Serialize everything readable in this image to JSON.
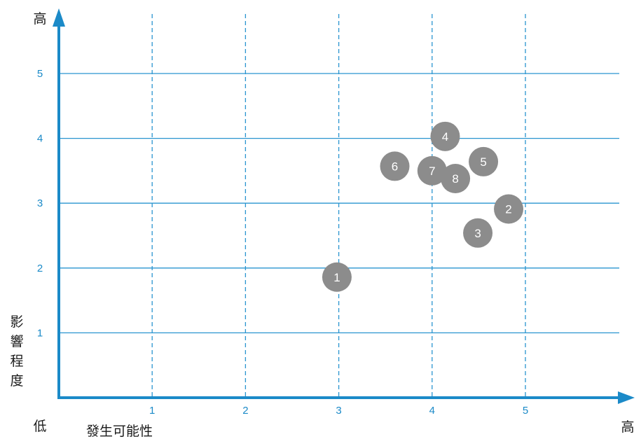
{
  "chart_data": {
    "type": "scatter",
    "x_range": [
      0,
      6
    ],
    "y_range": [
      0,
      5.9
    ],
    "x_ticks": [
      1,
      2,
      3,
      4,
      5
    ],
    "y_ticks": [
      1,
      2,
      3,
      4,
      5
    ],
    "grid": true,
    "y_axis_high_label": "高",
    "x_axis_high_label": "高",
    "origin_label": "低",
    "xlabel": "發生可能性",
    "ylabel": "影響程度",
    "points": [
      {
        "label": "1",
        "x": 2.98,
        "y": 1.86
      },
      {
        "label": "2",
        "x": 4.82,
        "y": 2.91
      },
      {
        "label": "3",
        "x": 4.49,
        "y": 2.54
      },
      {
        "label": "4",
        "x": 4.14,
        "y": 4.03
      },
      {
        "label": "5",
        "x": 4.55,
        "y": 3.64
      },
      {
        "label": "6",
        "x": 3.6,
        "y": 3.57
      },
      {
        "label": "7",
        "x": 4.0,
        "y": 3.5
      },
      {
        "label": "8",
        "x": 4.25,
        "y": 3.38
      }
    ],
    "colors": {
      "axis": "#1b8ac8",
      "grid": "#2a95d0",
      "tick_text": "#1b8ac8",
      "bubble": "#8c8c8c",
      "bubble_text": "#ffffff"
    }
  }
}
